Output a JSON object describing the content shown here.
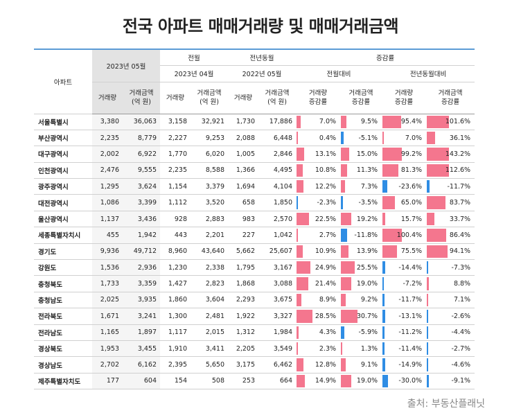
{
  "title": "전국 아파트 매매거래량 및 매매거래금액",
  "source": "출처: 부동산플래닛",
  "headers": {
    "region": "아파트",
    "current_period": "2023년 05월",
    "prev_month_group": "전월",
    "prev_month_period": "2023년 04월",
    "prev_year_group": "전년동월",
    "prev_year_period": "2022년 05월",
    "change_group": "증감률",
    "change_vs_month": "전월대비",
    "change_vs_year": "전년동월대비",
    "volume": "거래량",
    "amount_line1": "거래금액",
    "amount_line2": "(억 원)",
    "volume_change_line1": "거래량",
    "amount_change_line1": "거래금액",
    "change_line2": "증감률"
  },
  "colors": {
    "positive_bar": "#f4768e",
    "negative_bar": "#2f8de4",
    "header_rule": "#5b9bd5"
  },
  "rows": [
    {
      "region": "서울특별시",
      "v23_05": "3,380",
      "a23_05": "36,063",
      "v23_04": "3,158",
      "a23_04": "32,921",
      "v22_05": "1,730",
      "a22_05": "17,886",
      "mv": "7.0%",
      "ma": "9.5%",
      "yv": "95.4%",
      "ya": "101.6%",
      "mv_n": 7.0,
      "ma_n": 9.5,
      "yv_n": 95.4,
      "ya_n": 101.6
    },
    {
      "region": "부산광역시",
      "v23_05": "2,235",
      "a23_05": "8,779",
      "v23_04": "2,227",
      "a23_04": "9,253",
      "v22_05": "2,088",
      "a22_05": "6,448",
      "mv": "0.4%",
      "ma": "-5.1%",
      "yv": "7.0%",
      "ya": "36.1%",
      "mv_n": 0.4,
      "ma_n": -5.1,
      "yv_n": 7.0,
      "ya_n": 36.1
    },
    {
      "region": "대구광역시",
      "v23_05": "2,002",
      "a23_05": "6,922",
      "v23_04": "1,770",
      "a23_04": "6,020",
      "v22_05": "1,005",
      "a22_05": "2,846",
      "mv": "13.1%",
      "ma": "15.0%",
      "yv": "99.2%",
      "ya": "143.2%",
      "mv_n": 13.1,
      "ma_n": 15.0,
      "yv_n": 99.2,
      "ya_n": 143.2
    },
    {
      "region": "인천광역시",
      "v23_05": "2,476",
      "a23_05": "9,555",
      "v23_04": "2,235",
      "a23_04": "8,588",
      "v22_05": "1,366",
      "a22_05": "4,495",
      "mv": "10.8%",
      "ma": "11.3%",
      "yv": "81.3%",
      "ya": "112.6%",
      "mv_n": 10.8,
      "ma_n": 11.3,
      "yv_n": 81.3,
      "ya_n": 112.6
    },
    {
      "region": "광주광역시",
      "v23_05": "1,295",
      "a23_05": "3,624",
      "v23_04": "1,154",
      "a23_04": "3,379",
      "v22_05": "1,694",
      "a22_05": "4,104",
      "mv": "12.2%",
      "ma": "7.3%",
      "yv": "-23.6%",
      "ya": "-11.7%",
      "mv_n": 12.2,
      "ma_n": 7.3,
      "yv_n": -23.6,
      "ya_n": -11.7
    },
    {
      "region": "대전광역시",
      "v23_05": "1,086",
      "a23_05": "3,399",
      "v23_04": "1,112",
      "a23_04": "3,520",
      "v22_05": "658",
      "a22_05": "1,850",
      "mv": "-2.3%",
      "ma": "-3.5%",
      "yv": "65.0%",
      "ya": "83.7%",
      "mv_n": -2.3,
      "ma_n": -3.5,
      "yv_n": 65.0,
      "ya_n": 83.7
    },
    {
      "region": "울산광역시",
      "v23_05": "1,137",
      "a23_05": "3,436",
      "v23_04": "928",
      "a23_04": "2,883",
      "v22_05": "983",
      "a22_05": "2,570",
      "mv": "22.5%",
      "ma": "19.2%",
      "yv": "15.7%",
      "ya": "33.7%",
      "mv_n": 22.5,
      "ma_n": 19.2,
      "yv_n": 15.7,
      "ya_n": 33.7
    },
    {
      "region": "세종특별자치시",
      "v23_05": "455",
      "a23_05": "1,942",
      "v23_04": "443",
      "a23_04": "2,201",
      "v22_05": "227",
      "a22_05": "1,042",
      "mv": "2.7%",
      "ma": "-11.8%",
      "yv": "100.4%",
      "ya": "86.4%",
      "mv_n": 2.7,
      "ma_n": -11.8,
      "yv_n": 100.4,
      "ya_n": 86.4
    },
    {
      "region": "경기도",
      "v23_05": "9,936",
      "a23_05": "49,712",
      "v23_04": "8,960",
      "a23_04": "43,640",
      "v22_05": "5,662",
      "a22_05": "25,607",
      "mv": "10.9%",
      "ma": "13.9%",
      "yv": "75.5%",
      "ya": "94.1%",
      "mv_n": 10.9,
      "ma_n": 13.9,
      "yv_n": 75.5,
      "ya_n": 94.1
    },
    {
      "region": "강원도",
      "v23_05": "1,536",
      "a23_05": "2,936",
      "v23_04": "1,230",
      "a23_04": "2,338",
      "v22_05": "1,795",
      "a22_05": "3,167",
      "mv": "24.9%",
      "ma": "25.5%",
      "yv": "-14.4%",
      "ya": "-7.3%",
      "mv_n": 24.9,
      "ma_n": 25.5,
      "yv_n": -14.4,
      "ya_n": -7.3
    },
    {
      "region": "충청북도",
      "v23_05": "1,733",
      "a23_05": "3,359",
      "v23_04": "1,427",
      "a23_04": "2,823",
      "v22_05": "1,868",
      "a22_05": "3,088",
      "mv": "21.4%",
      "ma": "19.0%",
      "yv": "-7.2%",
      "ya": "8.8%",
      "mv_n": 21.4,
      "ma_n": 19.0,
      "yv_n": -7.2,
      "ya_n": 8.8
    },
    {
      "region": "충청남도",
      "v23_05": "2,025",
      "a23_05": "3,935",
      "v23_04": "1,860",
      "a23_04": "3,604",
      "v22_05": "2,293",
      "a22_05": "3,675",
      "mv": "8.9%",
      "ma": "9.2%",
      "yv": "-11.7%",
      "ya": "7.1%",
      "mv_n": 8.9,
      "ma_n": 9.2,
      "yv_n": -11.7,
      "ya_n": 7.1
    },
    {
      "region": "전라북도",
      "v23_05": "1,671",
      "a23_05": "3,241",
      "v23_04": "1,300",
      "a23_04": "2,481",
      "v22_05": "1,922",
      "a22_05": "3,327",
      "mv": "28.5%",
      "ma": "30.7%",
      "yv": "-13.1%",
      "ya": "-2.6%",
      "mv_n": 28.5,
      "ma_n": 30.7,
      "yv_n": -13.1,
      "ya_n": -2.6
    },
    {
      "region": "전라남도",
      "v23_05": "1,165",
      "a23_05": "1,897",
      "v23_04": "1,117",
      "a23_04": "2,015",
      "v22_05": "1,312",
      "a22_05": "1,984",
      "mv": "4.3%",
      "ma": "-5.9%",
      "yv": "-11.2%",
      "ya": "-4.4%",
      "mv_n": 4.3,
      "ma_n": -5.9,
      "yv_n": -11.2,
      "ya_n": -4.4
    },
    {
      "region": "경상북도",
      "v23_05": "1,953",
      "a23_05": "3,455",
      "v23_04": "1,910",
      "a23_04": "3,411",
      "v22_05": "2,205",
      "a22_05": "3,549",
      "mv": "2.3%",
      "ma": "1.3%",
      "yv": "-11.4%",
      "ya": "-2.7%",
      "mv_n": 2.3,
      "ma_n": 1.3,
      "yv_n": -11.4,
      "ya_n": -2.7
    },
    {
      "region": "경상남도",
      "v23_05": "2,702",
      "a23_05": "6,162",
      "v23_04": "2,395",
      "a23_04": "5,650",
      "v22_05": "3,175",
      "a22_05": "6,462",
      "mv": "12.8%",
      "ma": "9.1%",
      "yv": "-14.9%",
      "ya": "-4.6%",
      "mv_n": 12.8,
      "ma_n": 9.1,
      "yv_n": -14.9,
      "ya_n": -4.6
    },
    {
      "region": "제주특별자치도",
      "v23_05": "177",
      "a23_05": "604",
      "v23_04": "154",
      "a23_04": "508",
      "v22_05": "253",
      "a22_05": "664",
      "mv": "14.9%",
      "ma": "19.0%",
      "yv": "-30.0%",
      "ya": "-9.1%",
      "mv_n": 14.9,
      "ma_n": 19.0,
      "yv_n": -30.0,
      "ya_n": -9.1
    }
  ]
}
